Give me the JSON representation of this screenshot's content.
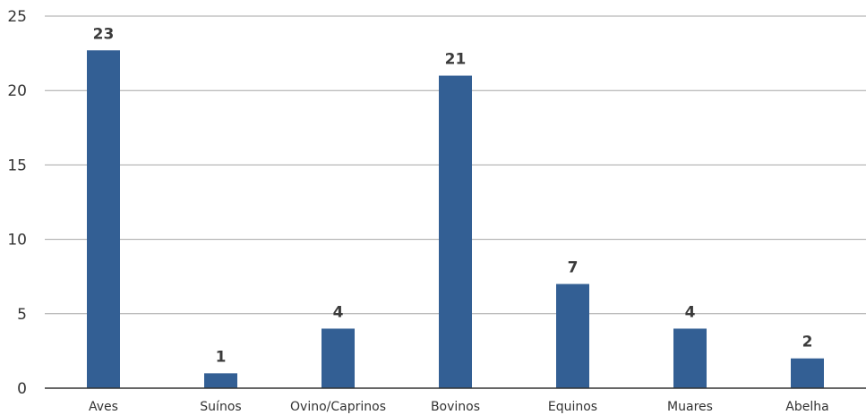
{
  "chart_data": {
    "type": "bar",
    "categories": [
      "Aves",
      "Suínos",
      "Ovino/Caprinos",
      "Bovinos",
      "Equinos",
      "Muares",
      "Abelha"
    ],
    "values": [
      23,
      1,
      4,
      21,
      7,
      4,
      2
    ],
    "bar_heights": [
      22.7,
      1,
      4,
      21,
      7,
      4,
      2
    ],
    "data_labels": [
      "23",
      "1",
      "4",
      "21",
      "7",
      "4",
      "2"
    ],
    "yticks": [
      0,
      5,
      10,
      15,
      20,
      25
    ],
    "ylim": [
      0,
      25
    ],
    "grid": true,
    "legend": false,
    "bar_color": "#335f94",
    "title": "",
    "xlabel": "",
    "ylabel": ""
  }
}
